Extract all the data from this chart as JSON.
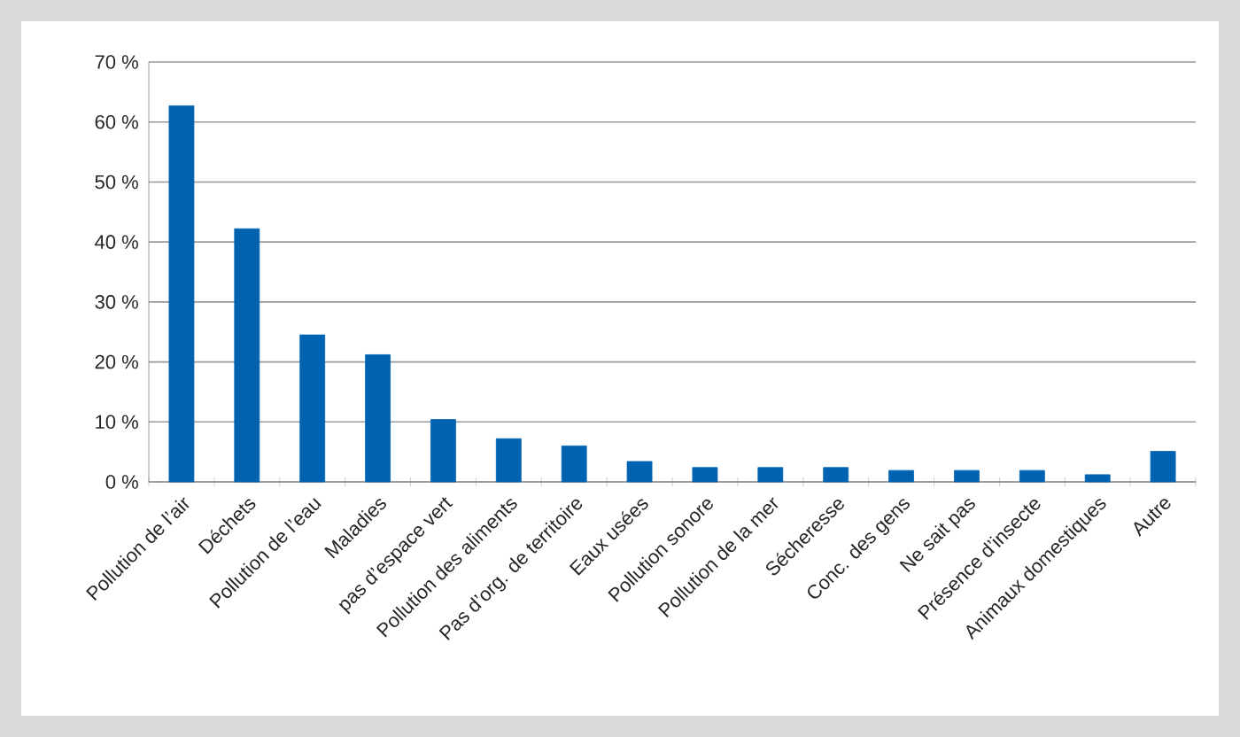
{
  "chart_data": {
    "type": "bar",
    "categories": [
      "Pollution de l’air",
      "Déchets",
      "Pollution de l’eau",
      "Maladies",
      "pas d’espace vert",
      "Pollution des aliments",
      "Pas d’org. de territoire",
      "Eaux usées",
      "Pollution sonore",
      "Pollution de la mer",
      "Sécheresse",
      "Conc. des gens",
      "Ne sait pas",
      "Présence d’insecte",
      "Animaux domestiques",
      "Autre"
    ],
    "values": [
      62.7,
      42.2,
      24.5,
      21.2,
      10.4,
      7.2,
      6.0,
      3.4,
      2.4,
      2.4,
      2.4,
      1.9,
      1.9,
      1.9,
      1.2,
      5.1
    ],
    "color": "#0063b1",
    "ylim": [
      0,
      70
    ],
    "yticks": [
      {
        "value": 0,
        "label": "0 %"
      },
      {
        "value": 10,
        "label": "10 %"
      },
      {
        "value": 20,
        "label": "20 %"
      },
      {
        "value": 30,
        "label": "30 %"
      },
      {
        "value": 40,
        "label": "40 %"
      },
      {
        "value": 50,
        "label": "50 %"
      },
      {
        "value": 60,
        "label": "60 %"
      },
      {
        "value": 70,
        "label": "70 %"
      }
    ],
    "grid": "y"
  }
}
